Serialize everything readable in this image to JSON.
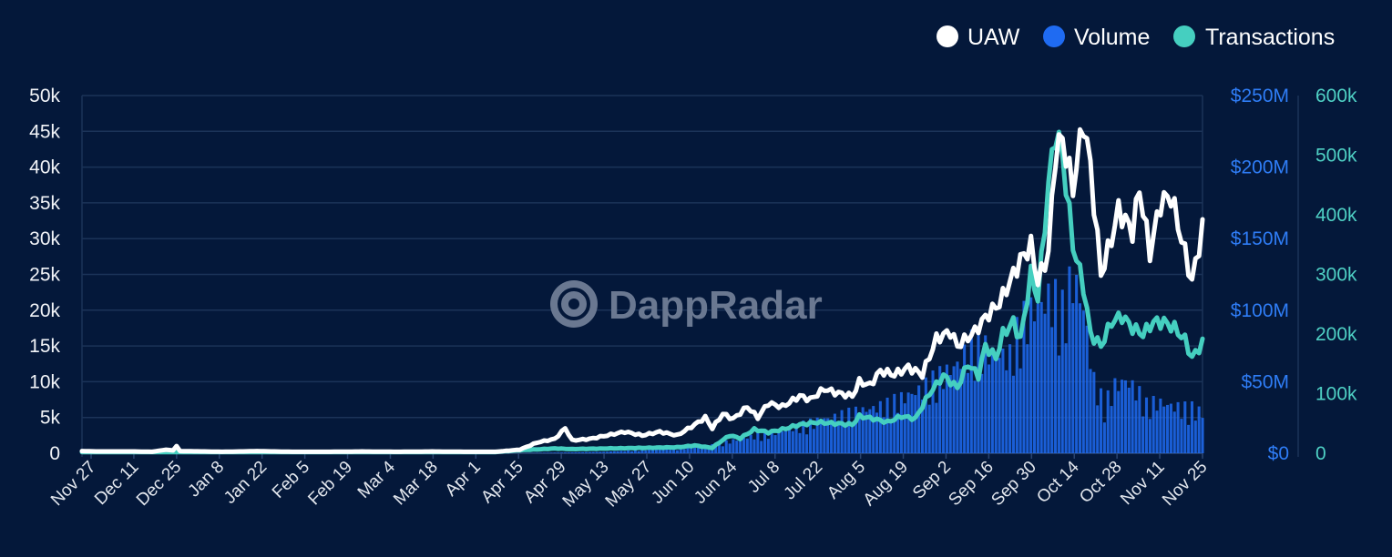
{
  "watermark": "DappRadar",
  "legend": [
    {
      "label": "UAW",
      "color": "#ffffff"
    },
    {
      "label": "Volume",
      "color": "#1f6bf2"
    },
    {
      "label": "Transactions",
      "color": "#45cfc0"
    }
  ],
  "chart_data": {
    "type": "line",
    "x_ticks": [
      "Nov 27",
      "Dec 11",
      "Dec 25",
      "Jan 8",
      "Jan 22",
      "Feb 5",
      "Feb 19",
      "Mar 4",
      "Mar 18",
      "Apr 1",
      "Apr 15",
      "Apr 29",
      "May 13",
      "May 27",
      "Jun 10",
      "Jun 24",
      "Jul 8",
      "Jul 22",
      "Aug 5",
      "Aug 19",
      "Sep 2",
      "Sep 16",
      "Sep 30",
      "Oct 14",
      "Oct 28",
      "Nov 11",
      "Nov 25"
    ],
    "axes": {
      "uaw": {
        "ticks": [
          "0",
          "5k",
          "10k",
          "15k",
          "20k",
          "25k",
          "30k",
          "35k",
          "40k",
          "45k",
          "50k"
        ],
        "ylim": [
          0,
          50000
        ],
        "color": "#f2f4f8"
      },
      "volume": {
        "ticks": [
          "$0",
          "$50M",
          "$100M",
          "$150M",
          "$200M",
          "$250M"
        ],
        "ylim": [
          0,
          250
        ],
        "unit": "$M",
        "color": "#2f7df6"
      },
      "transactions": {
        "ticks": [
          "0",
          "100k",
          "200k",
          "300k",
          "400k",
          "500k",
          "600k"
        ],
        "ylim": [
          0,
          600000
        ],
        "color": "#4fd1c5"
      }
    },
    "series": [
      {
        "name": "UAW",
        "axis": "uaw",
        "color": "#ffffff",
        "points": [
          [
            0,
            300
          ],
          [
            5,
            250
          ],
          [
            10,
            250
          ],
          [
            15,
            250
          ],
          [
            20,
            200
          ],
          [
            24,
            500
          ],
          [
            26,
            400
          ],
          [
            27,
            1000
          ],
          [
            28,
            300
          ],
          [
            35,
            250
          ],
          [
            40,
            200
          ],
          [
            50,
            300
          ],
          [
            60,
            200
          ],
          [
            70,
            200
          ],
          [
            80,
            250
          ],
          [
            90,
            200
          ],
          [
            100,
            250
          ],
          [
            110,
            200
          ],
          [
            118,
            200
          ],
          [
            125,
            500
          ],
          [
            130,
            1500
          ],
          [
            135,
            2000
          ],
          [
            138,
            3500
          ],
          [
            140,
            1800
          ],
          [
            145,
            2000
          ],
          [
            150,
            2500
          ],
          [
            155,
            3000
          ],
          [
            160,
            2500
          ],
          [
            165,
            3000
          ],
          [
            170,
            2500
          ],
          [
            175,
            4000
          ],
          [
            178,
            5000
          ],
          [
            180,
            3500
          ],
          [
            183,
            5500
          ],
          [
            186,
            4800
          ],
          [
            190,
            6500
          ],
          [
            193,
            5000
          ],
          [
            196,
            7000
          ],
          [
            200,
            6500
          ],
          [
            205,
            8000
          ],
          [
            208,
            7500
          ],
          [
            212,
            9000
          ],
          [
            215,
            8500
          ],
          [
            220,
            8000
          ],
          [
            222,
            10000
          ],
          [
            225,
            9500
          ],
          [
            228,
            11500
          ],
          [
            232,
            11000
          ],
          [
            236,
            12000
          ],
          [
            240,
            11000
          ],
          [
            244,
            16000
          ],
          [
            248,
            17000
          ],
          [
            250,
            15000
          ],
          [
            255,
            17000
          ],
          [
            258,
            19000
          ],
          [
            262,
            21000
          ],
          [
            265,
            24000
          ],
          [
            268,
            27000
          ],
          [
            271,
            29000
          ],
          [
            273,
            24000
          ],
          [
            276,
            28000
          ],
          [
            278,
            42000
          ],
          [
            280,
            44000
          ],
          [
            283,
            37000
          ],
          [
            286,
            46500
          ],
          [
            288,
            40000
          ],
          [
            291,
            25000
          ],
          [
            294,
            30000
          ],
          [
            296,
            34000
          ],
          [
            300,
            31000
          ],
          [
            302,
            37000
          ],
          [
            305,
            28000
          ],
          [
            308,
            35000
          ],
          [
            311,
            36000
          ],
          [
            314,
            30000
          ],
          [
            317,
            24000
          ],
          [
            320,
            31500
          ]
        ]
      },
      {
        "name": "Transactions",
        "axis": "transactions",
        "color": "#45cfc0",
        "points": [
          [
            0,
            2000
          ],
          [
            20,
            2000
          ],
          [
            40,
            2000
          ],
          [
            60,
            2000
          ],
          [
            80,
            2000
          ],
          [
            100,
            2000
          ],
          [
            118,
            2000
          ],
          [
            125,
            5000
          ],
          [
            135,
            8000
          ],
          [
            140,
            7000
          ],
          [
            150,
            8000
          ],
          [
            160,
            9000
          ],
          [
            170,
            10000
          ],
          [
            175,
            13000
          ],
          [
            180,
            9000
          ],
          [
            182,
            18000
          ],
          [
            185,
            30000
          ],
          [
            188,
            25000
          ],
          [
            192,
            40000
          ],
          [
            196,
            35000
          ],
          [
            200,
            40000
          ],
          [
            205,
            48000
          ],
          [
            210,
            52000
          ],
          [
            215,
            50000
          ],
          [
            220,
            48000
          ],
          [
            222,
            62000
          ],
          [
            226,
            58000
          ],
          [
            230,
            52000
          ],
          [
            234,
            62000
          ],
          [
            238,
            58000
          ],
          [
            242,
            100000
          ],
          [
            246,
            130000
          ],
          [
            250,
            110000
          ],
          [
            253,
            150000
          ],
          [
            256,
            130000
          ],
          [
            258,
            180000
          ],
          [
            261,
            160000
          ],
          [
            263,
            200000
          ],
          [
            266,
            220000
          ],
          [
            268,
            190000
          ],
          [
            271,
            300000
          ],
          [
            273,
            260000
          ],
          [
            276,
            450000
          ],
          [
            278,
            540000
          ],
          [
            280,
            500000
          ],
          [
            283,
            350000
          ],
          [
            286,
            280000
          ],
          [
            288,
            200000
          ],
          [
            291,
            180000
          ],
          [
            294,
            220000
          ],
          [
            297,
            230000
          ],
          [
            300,
            210000
          ],
          [
            303,
            200000
          ],
          [
            306,
            220000
          ],
          [
            309,
            220000
          ],
          [
            312,
            210000
          ],
          [
            315,
            190000
          ],
          [
            317,
            160000
          ],
          [
            320,
            185000
          ]
        ]
      },
      {
        "name": "Volume",
        "axis": "volume",
        "type": "bar",
        "color": "#1f6bf2",
        "points": [
          [
            0,
            0
          ],
          [
            125,
            0
          ],
          [
            150,
            1
          ],
          [
            170,
            3
          ],
          [
            180,
            5
          ],
          [
            190,
            10
          ],
          [
            200,
            14
          ],
          [
            210,
            20
          ],
          [
            220,
            25
          ],
          [
            230,
            30
          ],
          [
            240,
            40
          ],
          [
            250,
            55
          ],
          [
            255,
            70
          ],
          [
            260,
            62
          ],
          [
            265,
            60
          ],
          [
            268,
            80
          ],
          [
            271,
            88
          ],
          [
            274,
            92
          ],
          [
            277,
            98
          ],
          [
            280,
            88
          ],
          [
            283,
            110
          ],
          [
            286,
            90
          ],
          [
            289,
            45
          ],
          [
            292,
            30
          ],
          [
            295,
            42
          ],
          [
            298,
            45
          ],
          [
            301,
            40
          ],
          [
            304,
            30
          ],
          [
            307,
            32
          ],
          [
            310,
            30
          ],
          [
            314,
            28
          ],
          [
            317,
            28
          ],
          [
            320,
            25
          ]
        ]
      }
    ]
  }
}
